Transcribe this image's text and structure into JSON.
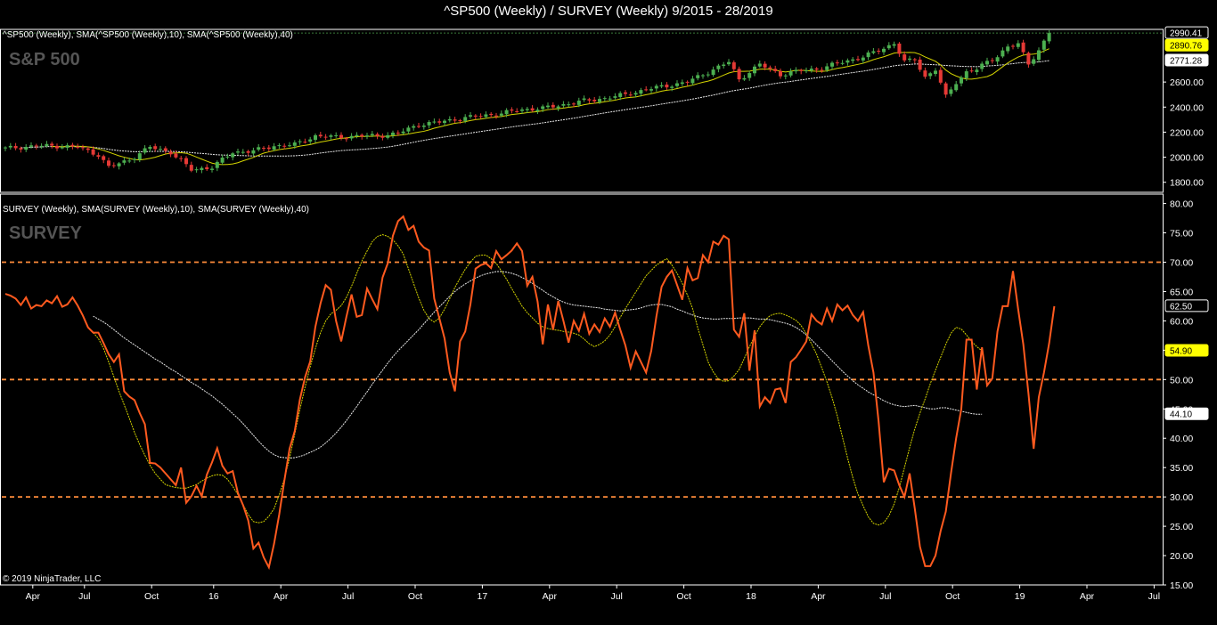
{
  "title": "^SP500 (Weekly) / SURVEY (Weekly)  9/2015 - 28/2019",
  "copyright": "© 2019 NinjaTrader, LLC",
  "colors": {
    "background": "#000000",
    "price_up": "#4caf50",
    "price_down": "#e53935",
    "survey_line": "#ff5a1f",
    "sma10": "#d4d400",
    "sma40": "#e8e8e8",
    "ref_line": "#ff8c3a",
    "badge_yellow": "#ffff00"
  },
  "chart_data": [
    {
      "type": "candlestick",
      "label": "^SP500 (Weekly), SMA(^SP500 (Weekly),10), SMA(^SP500 (Weekly),40)",
      "watermark": "S&P 500",
      "ylim": [
        1720,
        3020
      ],
      "yticks": [
        "1800.00",
        "2000.00",
        "2200.00",
        "2400.00",
        "2600.00"
      ],
      "last_values": {
        "price": "2990.41",
        "sma10": "2890.76",
        "sma40": "2771.28"
      },
      "anchors": [
        [
          0,
          2070
        ],
        [
          6,
          2090
        ],
        [
          10,
          2090
        ],
        [
          14,
          2080
        ],
        [
          18,
          2020
        ],
        [
          20,
          1920
        ],
        [
          24,
          1980
        ],
        [
          28,
          2080
        ],
        [
          32,
          2040
        ],
        [
          36,
          1900
        ],
        [
          40,
          1920
        ],
        [
          44,
          2040
        ],
        [
          48,
          2050
        ],
        [
          52,
          2090
        ],
        [
          56,
          2100
        ],
        [
          60,
          2170
        ],
        [
          64,
          2160
        ],
        [
          68,
          2170
        ],
        [
          72,
          2170
        ],
        [
          76,
          2190
        ],
        [
          80,
          2260
        ],
        [
          84,
          2280
        ],
        [
          88,
          2310
        ],
        [
          92,
          2330
        ],
        [
          96,
          2350
        ],
        [
          100,
          2380
        ],
        [
          104,
          2390
        ],
        [
          108,
          2420
        ],
        [
          112,
          2450
        ],
        [
          116,
          2470
        ],
        [
          120,
          2500
        ],
        [
          124,
          2540
        ],
        [
          128,
          2570
        ],
        [
          132,
          2600
        ],
        [
          136,
          2680
        ],
        [
          140,
          2760
        ],
        [
          142,
          2620
        ],
        [
          146,
          2740
        ],
        [
          150,
          2660
        ],
        [
          154,
          2690
        ],
        [
          158,
          2710
        ],
        [
          162,
          2760
        ],
        [
          166,
          2800
        ],
        [
          170,
          2870
        ],
        [
          172,
          2910
        ],
        [
          174,
          2760
        ],
        [
          176,
          2780
        ],
        [
          178,
          2640
        ],
        [
          180,
          2700
        ],
        [
          182,
          2480
        ],
        [
          184,
          2600
        ],
        [
          186,
          2680
        ],
        [
          188,
          2700
        ],
        [
          190,
          2760
        ],
        [
          192,
          2810
        ],
        [
          194,
          2880
        ],
        [
          196,
          2900
        ],
        [
          198,
          2750
        ],
        [
          200,
          2850
        ],
        [
          202,
          2990
        ]
      ]
    },
    {
      "type": "line",
      "label": "SURVEY (Weekly), SMA(SURVEY (Weekly),10), SMA(SURVEY (Weekly),40)",
      "watermark": "SURVEY",
      "ylim": [
        15,
        81
      ],
      "yticks": [
        "15.00",
        "20.00",
        "25.00",
        "30.00",
        "35.00",
        "40.00",
        "45.00",
        "50.00",
        "55.00",
        "60.00",
        "65.00",
        "70.00",
        "75.00",
        "80.00"
      ],
      "reference_lines": [
        30,
        50,
        70
      ],
      "last_values": {
        "survey": "62.50",
        "sma10": "54.90",
        "sma40": "44.10"
      },
      "series": [
        {
          "key": "survey",
          "values": [
            64.6,
            64.3,
            63.8,
            62.7,
            64.0,
            62.1,
            62.7,
            62.5,
            63.5,
            63.0,
            64.2,
            62.4,
            62.8,
            64.0,
            62.6,
            60.9,
            58.9,
            58.0,
            58.0,
            56.2,
            54.3,
            53.0,
            54.3,
            48.0,
            47.1,
            46.5,
            44.3,
            42.4,
            35.8,
            35.7,
            35.0,
            34.0,
            33.0,
            32.0,
            35.0,
            29.0,
            30.1,
            31.9,
            30.1,
            33.8,
            35.9,
            38.3,
            35.3,
            34.0,
            34.4,
            30.7,
            28.6,
            26.0,
            21.2,
            22.2,
            19.7,
            18.0,
            22.0,
            27.0,
            32.8,
            38.2,
            41.2,
            46.6,
            50.4,
            53.1,
            59.0,
            63.0,
            66.1,
            65.3,
            60.0,
            56.5,
            60.7,
            64.5,
            60.7,
            61.0,
            65.5,
            63.7,
            62.0,
            67.4,
            69.8,
            74.5,
            77.0,
            77.8,
            75.5,
            76.2,
            73.5,
            72.5,
            72.0,
            63.8,
            60.4,
            57.0,
            51.2,
            48.0,
            56.5,
            58.2,
            62.8,
            68.9,
            69.5,
            69.8,
            69.0,
            71.9,
            70.5,
            71.2,
            72.0,
            73.2,
            71.9,
            66.0,
            67.5,
            63.3,
            56.0,
            62.8,
            58.5,
            63.4,
            60.0,
            56.3,
            60.0,
            58.3,
            61.2,
            57.8,
            59.4,
            58.1,
            60.4,
            59.0,
            61.4,
            58.5,
            55.8,
            52.0,
            54.8,
            53.0,
            51.2,
            54.9,
            60.8,
            65.8,
            67.5,
            68.6,
            66.1,
            63.6,
            69.0,
            66.9,
            67.3,
            71.2,
            70.0,
            73.5,
            73.0,
            74.5,
            73.9,
            58.5,
            57.3,
            61.3,
            51.5,
            58.4,
            45.4,
            47.0,
            46.0,
            48.3,
            48.5,
            46.0,
            53.0,
            53.8,
            55.1,
            56.5,
            61.1,
            60.0,
            59.4,
            62.1,
            60.0,
            62.8,
            61.8,
            62.6,
            61.0,
            60.0,
            61.5,
            55.8,
            51.2,
            42.8,
            32.5,
            34.8,
            34.5,
            32.0,
            30.0,
            34.0,
            28.0,
            21.5,
            18.2,
            18.2,
            20.0,
            24.2,
            27.5,
            34.0,
            40.0,
            45.0,
            56.8,
            56.8,
            48.3,
            55.5,
            49.0,
            50.2,
            58.2,
            62.5,
            62.5,
            68.5,
            62.0,
            56.0,
            47.6,
            38.2,
            47.0,
            51.2,
            56.2,
            62.5
          ]
        },
        {
          "key": "sma10",
          "start": 17,
          "values": [
            58.0,
            57.0,
            55.3,
            53.0,
            50.5,
            48.0,
            45.7,
            43.4,
            41.0,
            38.9,
            37.1,
            35.4,
            34.0,
            33.0,
            32.1,
            31.8,
            31.6,
            31.5,
            31.5,
            31.8,
            32.1,
            32.7,
            33.2,
            33.6,
            33.8,
            33.7,
            33.0,
            31.8,
            30.4,
            28.7,
            27.0,
            25.8,
            25.6,
            25.8,
            26.7,
            28.0,
            30.3,
            33.1,
            36.6,
            40.7,
            44.9,
            48.7,
            52.2,
            55.3,
            58.0,
            60.0,
            61.2,
            61.8,
            62.6,
            64.0,
            65.9,
            68.1,
            70.2,
            71.9,
            73.5,
            74.4,
            74.7,
            74.4,
            73.8,
            72.8,
            71.4,
            68.9,
            66.4,
            63.9,
            61.8,
            60.4,
            59.8,
            60.5,
            62.0,
            63.8,
            65.7,
            67.3,
            68.8,
            70.0,
            71.0,
            71.2,
            71.2,
            70.6,
            69.8,
            68.5,
            67.1,
            65.5,
            64.0,
            62.5,
            61.4,
            60.5,
            59.6,
            59.0,
            58.7,
            58.5,
            58.4,
            58.2,
            58.1,
            57.9,
            57.6,
            56.9,
            56.1,
            55.6,
            56.0,
            56.6,
            57.6,
            59.0,
            60.6,
            62.1,
            63.5,
            64.9,
            66.3,
            67.7,
            68.6,
            69.5,
            70.1,
            70.6,
            69.5,
            68.1,
            66.4,
            64.4,
            62.1,
            58.8,
            55.9,
            53.0,
            51.3,
            50.1,
            49.7,
            49.8,
            50.6,
            51.7,
            53.6,
            55.6,
            57.4,
            59.0,
            60.1,
            60.9,
            61.2,
            61.3,
            61.0,
            60.6,
            60.1,
            59.2,
            57.8,
            56.1,
            54.3,
            52.0,
            49.6,
            46.9,
            43.8,
            40.2,
            36.6,
            33.3,
            30.5,
            28.5,
            26.6,
            25.5,
            25.2,
            25.6,
            26.8,
            28.8,
            31.6,
            35.0,
            38.4,
            41.6,
            44.3,
            46.7,
            49.3,
            51.6,
            53.8,
            56.0,
            57.9,
            58.9,
            58.6,
            57.6,
            56.5,
            55.6,
            54.9
          ]
        },
        {
          "key": "sma40",
          "start": 17,
          "values": [
            60.8,
            60.3,
            59.8,
            59.2,
            58.5,
            57.8,
            57.1,
            56.5,
            55.9,
            55.3,
            54.7,
            54.1,
            53.5,
            53.0,
            52.4,
            51.8,
            51.3,
            50.7,
            50.1,
            49.5,
            49.0,
            48.4,
            47.8,
            47.2,
            46.5,
            45.8,
            45.0,
            44.2,
            43.4,
            42.5,
            41.5,
            40.5,
            39.5,
            38.6,
            37.8,
            37.2,
            36.8,
            36.7,
            36.6,
            36.7,
            36.9,
            37.2,
            37.6,
            38.0,
            38.5,
            39.2,
            40.0,
            40.9,
            41.9,
            43.0,
            44.2,
            45.4,
            46.7,
            47.9,
            49.2,
            50.4,
            51.6,
            52.8,
            53.9,
            54.9,
            55.8,
            56.7,
            57.6,
            58.5,
            59.5,
            60.5,
            61.5,
            62.4,
            63.3,
            64.2,
            65.0,
            65.7,
            66.3,
            66.8,
            67.3,
            67.7,
            68.0,
            68.2,
            68.4,
            68.4,
            68.3,
            68.1,
            67.8,
            67.4,
            66.9,
            66.4,
            65.8,
            65.2,
            64.6,
            64.1,
            63.6,
            63.2,
            62.9,
            62.7,
            62.6,
            62.5,
            62.4,
            62.3,
            62.2,
            62.0,
            61.9,
            61.8,
            61.7,
            61.8,
            61.9,
            62.0,
            62.2,
            62.5,
            62.7,
            62.8,
            62.8,
            62.6,
            62.4,
            62.0,
            61.7,
            61.3,
            61.0,
            60.7,
            60.5,
            60.4,
            60.3,
            60.3,
            60.4,
            60.4,
            60.4,
            60.5,
            60.5,
            60.5,
            60.4,
            60.3,
            60.3,
            60.2,
            60.0,
            59.8,
            59.6,
            59.3,
            58.9,
            58.3,
            57.6,
            56.8,
            55.9,
            55.0,
            54.1,
            53.2,
            52.3,
            51.4,
            50.6,
            49.8,
            49.1,
            48.5,
            47.9,
            47.4,
            46.9,
            46.4,
            46.0,
            45.7,
            45.5,
            45.4,
            45.5,
            45.6,
            45.4,
            45.2,
            45.0,
            45.0,
            45.2,
            45.2,
            45.0,
            44.8,
            44.6,
            44.4,
            44.2,
            44.1,
            44.1
          ]
        }
      ]
    }
  ],
  "x_axis": {
    "labels": [
      {
        "w": 1,
        "t": "Apr"
      },
      {
        "w": 11,
        "t": "Jul"
      },
      {
        "w": 24,
        "t": "Oct"
      },
      {
        "w": 36,
        "t": "16"
      },
      {
        "w": 49,
        "t": "Apr"
      },
      {
        "w": 62,
        "t": "Jul"
      },
      {
        "w": 75,
        "t": "Oct"
      },
      {
        "w": 88,
        "t": "17"
      },
      {
        "w": 101,
        "t": "Apr"
      },
      {
        "w": 114,
        "t": "Jul"
      },
      {
        "w": 127,
        "t": "Oct"
      },
      {
        "w": 140,
        "t": "18"
      },
      {
        "w": 153,
        "t": "Apr"
      },
      {
        "w": 166,
        "t": "Jul"
      },
      {
        "w": 179,
        "t": "Oct"
      },
      {
        "w": 192,
        "t": "19"
      },
      {
        "w": 205,
        "t": "Apr"
      },
      {
        "w": 218,
        "t": "Jul"
      }
    ]
  }
}
